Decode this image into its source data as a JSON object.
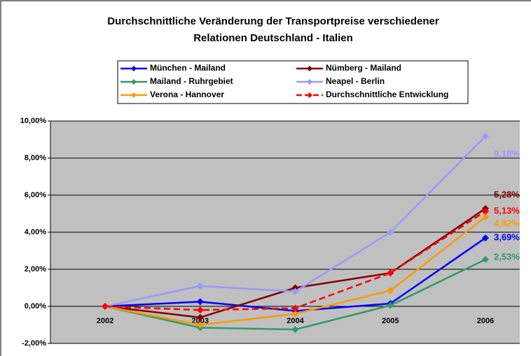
{
  "chart_data": {
    "type": "line",
    "title": [
      "Durchschnittliche Veränderung der Transportpreise verschiedener",
      "Relationen Deutschland - Italien"
    ],
    "categories": [
      "2002",
      "2003",
      "2004",
      "2005",
      "2006"
    ],
    "series": [
      {
        "name": "München - Mailand",
        "color": "#0000ff",
        "values": [
          0,
          0.25,
          -0.25,
          0.15,
          3.69
        ],
        "value_labels": [
          null,
          null,
          null,
          null,
          "3,69%"
        ]
      },
      {
        "name": "Nümberg - Mailand",
        "color": "#800000",
        "values": [
          0,
          -0.6,
          1.0,
          1.8,
          5.28
        ],
        "value_labels": [
          null,
          null,
          null,
          null,
          "5,28%"
        ]
      },
      {
        "name": "Mailand - Ruhrgebiet",
        "color": "#339966",
        "values": [
          0,
          -1.15,
          -1.25,
          0.05,
          2.53
        ],
        "value_labels": [
          null,
          null,
          null,
          null,
          "2,53%"
        ]
      },
      {
        "name": "Neapel - Berlin",
        "color": "#9999ff",
        "values": [
          0,
          1.1,
          0.8,
          4.0,
          9.18
        ],
        "value_labels": [
          null,
          null,
          null,
          null,
          "9,18%"
        ]
      },
      {
        "name": "Verona - Hannover",
        "color": "#ff9900",
        "values": [
          0,
          -1.0,
          -0.4,
          0.85,
          4.82
        ],
        "value_labels": [
          null,
          null,
          null,
          null,
          "4,82%"
        ]
      },
      {
        "name": "Durchschnittliche Entwicklung",
        "color": "#ff0000",
        "dashed": true,
        "values": [
          0,
          -0.2,
          -0.1,
          1.8,
          5.13
        ],
        "value_labels": [
          null,
          null,
          null,
          null,
          "5,13%"
        ]
      }
    ],
    "ylim": [
      -2,
      10
    ],
    "yticks": [
      {
        "value": -2,
        "label": "-2,00%"
      },
      {
        "value": 0,
        "label": "0,00%"
      },
      {
        "value": 2,
        "label": "2,00%"
      },
      {
        "value": 4,
        "label": "4,00%"
      },
      {
        "value": 6,
        "label": "6,00%"
      },
      {
        "value": 8,
        "label": "8,00%"
      },
      {
        "value": 10,
        "label": "10,00%"
      }
    ],
    "grid": true
  }
}
